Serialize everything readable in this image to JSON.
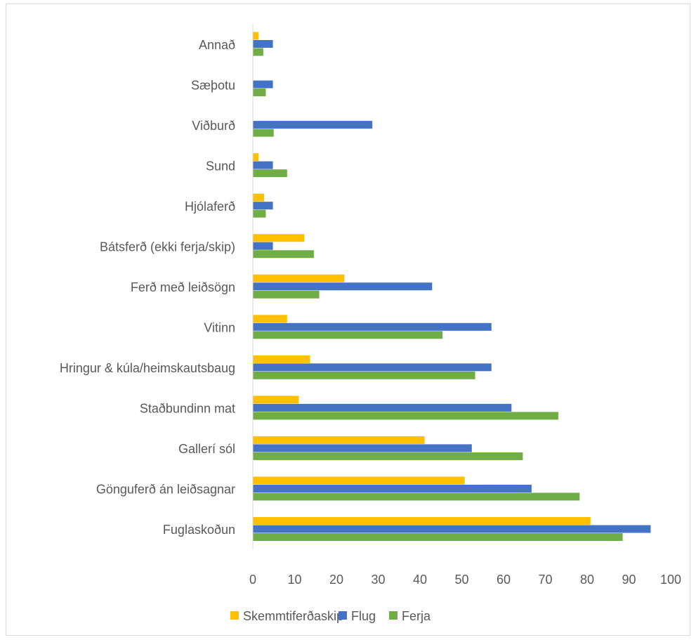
{
  "chart_data": {
    "type": "bar",
    "orientation": "horizontal",
    "title": "",
    "xlabel": "",
    "ylabel": "",
    "xlim": [
      0,
      100
    ],
    "x_ticks": [
      0,
      10,
      20,
      30,
      40,
      50,
      60,
      70,
      80,
      90,
      100
    ],
    "grid": false,
    "legend_position": "bottom",
    "categories": [
      "Annað",
      "Sæþotu",
      "Viðburð",
      "Sund",
      "Hjólaferð",
      "Bátsferð (ekki ferja/skip)",
      "Ferð með leiðsögn",
      "Vitinn",
      "Hringur & kúla/heimskautsbaug",
      "Staðbundinn mat",
      "Gallerí sól",
      "Gönguferð án leiðsagnar",
      "Fuglaskoðun"
    ],
    "series": [
      {
        "name": "Skemmtiferðaskip",
        "color": "#FFC000",
        "values": [
          1.4,
          0,
          0,
          1.4,
          2.7,
          12.3,
          21.9,
          8.2,
          13.7,
          11.0,
          41.1,
          50.7,
          80.8
        ]
      },
      {
        "name": "Flug",
        "color": "#4472C4",
        "values": [
          4.8,
          4.8,
          28.6,
          4.8,
          4.8,
          4.8,
          42.9,
          57.1,
          57.1,
          61.9,
          52.4,
          66.7,
          95.2
        ]
      },
      {
        "name": "Ferja",
        "color": "#70AD47",
        "values": [
          2.5,
          3.1,
          5.0,
          8.2,
          3.1,
          14.6,
          15.9,
          45.4,
          53.2,
          73.1,
          64.6,
          78.2,
          88.5
        ]
      }
    ]
  }
}
